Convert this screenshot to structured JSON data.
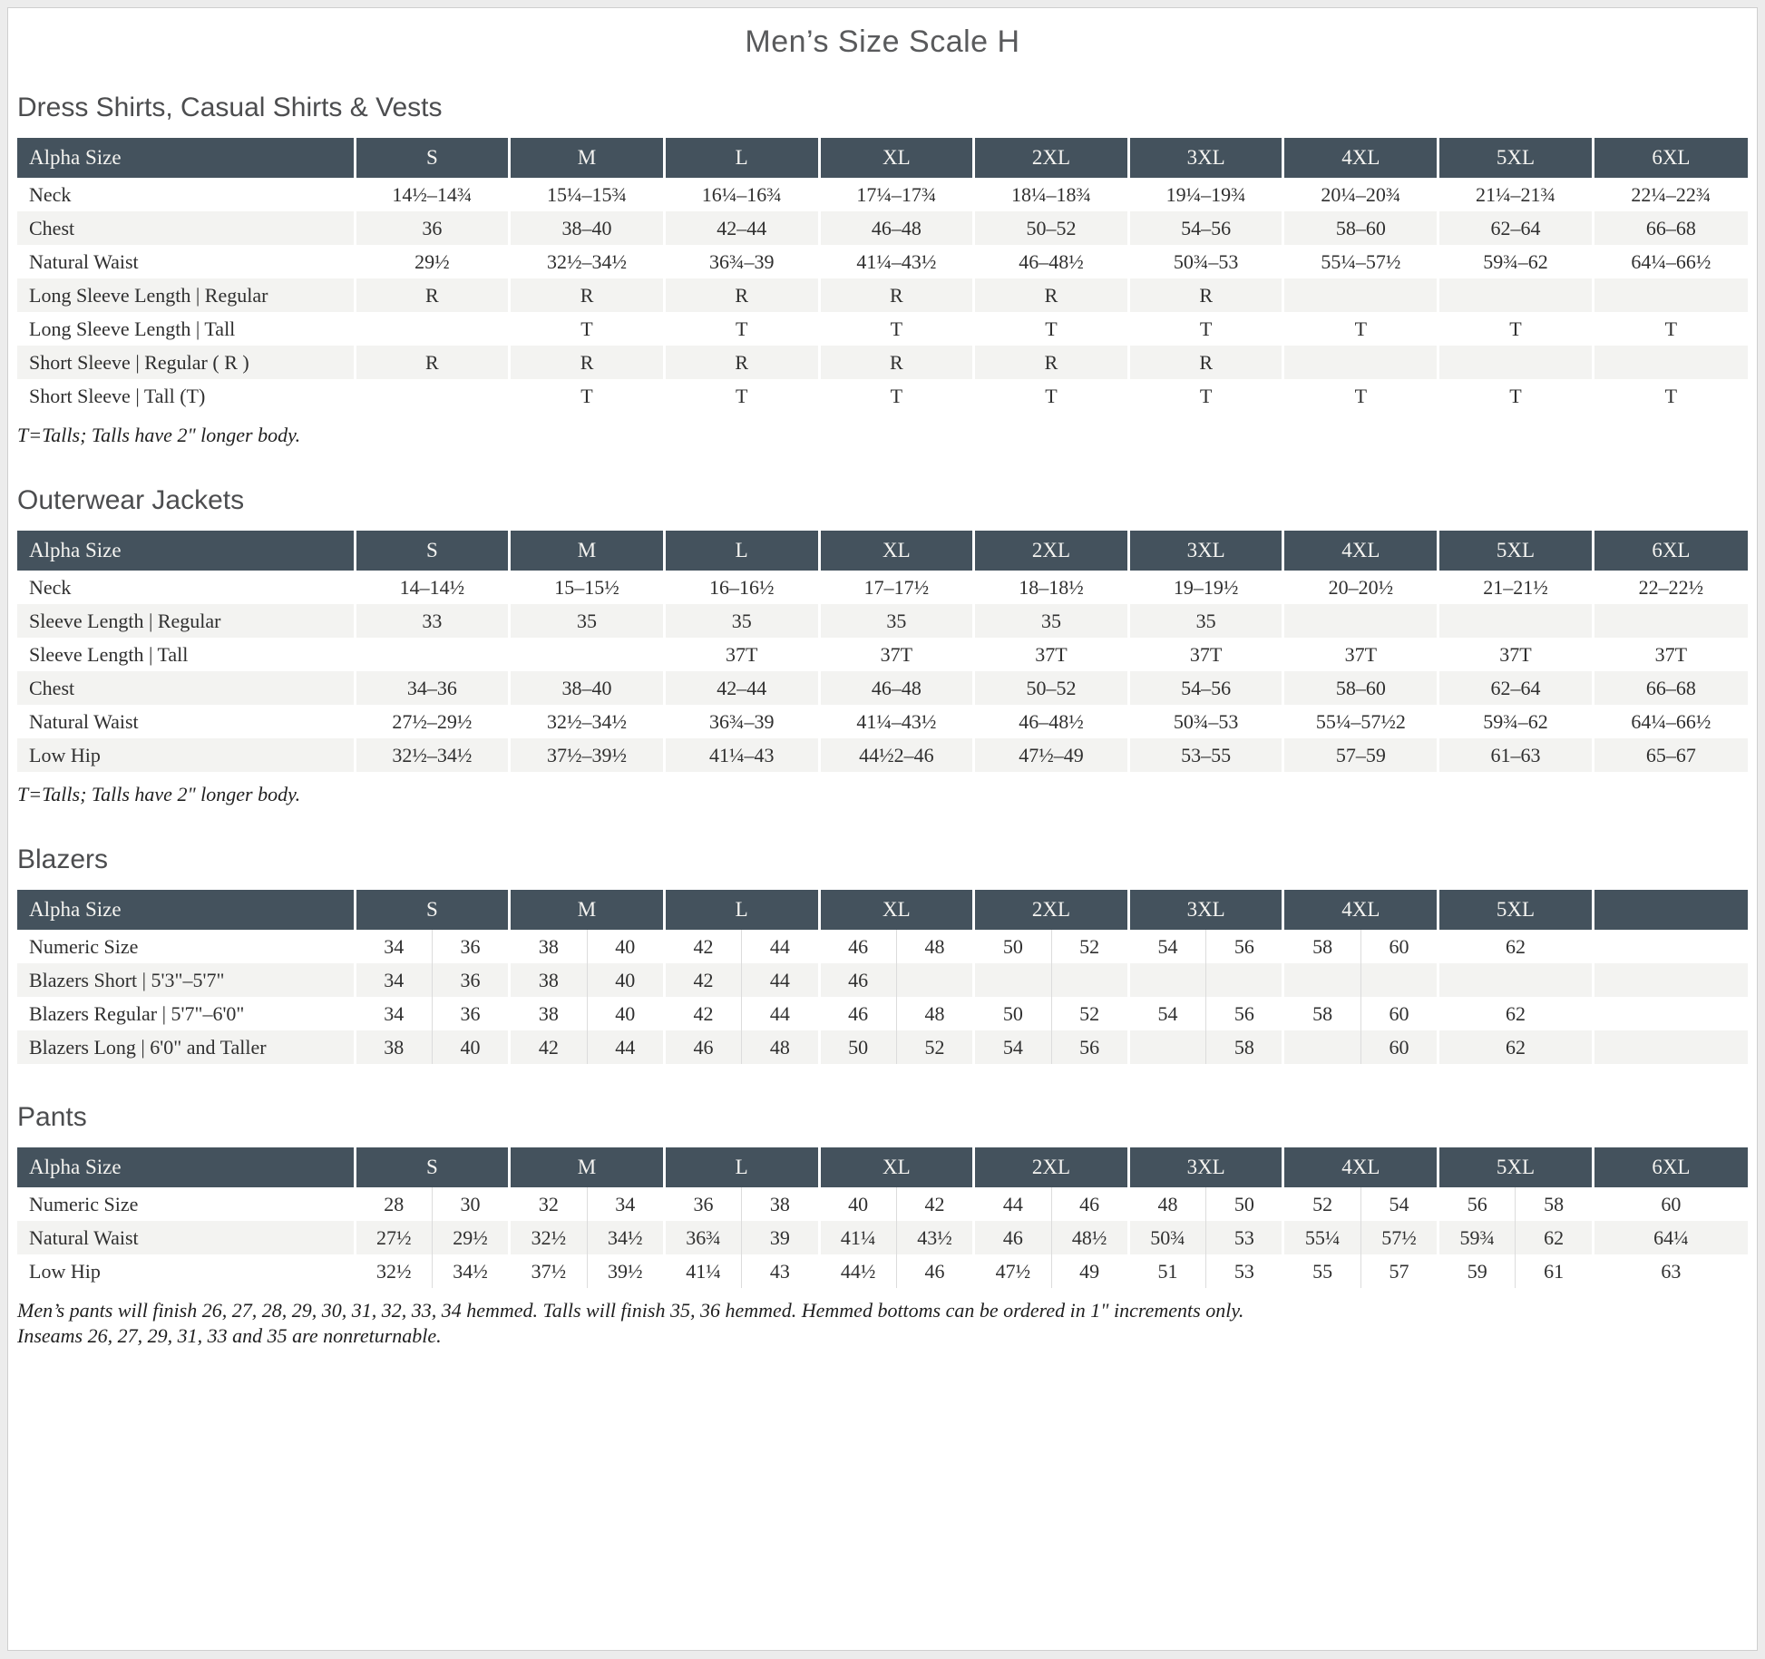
{
  "title": "Men’s Size Scale H",
  "colors": {
    "header_bg": "#44525d",
    "header_text": "#f5f4f1",
    "row_alt_bg": "#f3f3f1",
    "body_text": "#2f2f2f",
    "heading_text": "#4c4d4f",
    "title_text": "#595a5c",
    "page_border": "#cfcfcf"
  },
  "sections": [
    {
      "id": "dress-shirts",
      "heading": "Dress Shirts, Casual Shirts & Vests",
      "layout": "simple",
      "columns": [
        "Alpha Size",
        "S",
        "M",
        "L",
        "XL",
        "2XL",
        "3XL",
        "4XL",
        "5XL",
        "6XL"
      ],
      "rows": [
        {
          "label": "Neck",
          "values": [
            "14½–14¾",
            "15¼–15¾",
            "16¼–16¾",
            "17¼–17¾",
            "18¼–18¾",
            "19¼–19¾",
            "20¼–20¾",
            "21¼–21¾",
            "22¼–22¾"
          ]
        },
        {
          "label": "Chest",
          "values": [
            "36",
            "38–40",
            "42–44",
            "46–48",
            "50–52",
            "54–56",
            "58–60",
            "62–64",
            "66–68"
          ]
        },
        {
          "label": "Natural Waist",
          "values": [
            "29½",
            "32½–34½",
            "36¾–39",
            "41¼–43½",
            "46–48½",
            "50¾–53",
            "55¼–57½",
            "59¾–62",
            "64¼–66½"
          ]
        },
        {
          "label": "Long Sleeve Length | Regular",
          "values": [
            "R",
            "R",
            "R",
            "R",
            "R",
            "R",
            "",
            "",
            ""
          ]
        },
        {
          "label": "Long Sleeve Length | Tall",
          "values": [
            "",
            "T",
            "T",
            "T",
            "T",
            "T",
            "T",
            "T",
            "T"
          ]
        },
        {
          "label": "Short Sleeve | Regular ( R )",
          "values": [
            "R",
            "R",
            "R",
            "R",
            "R",
            "R",
            "",
            "",
            ""
          ]
        },
        {
          "label": "Short Sleeve | Tall (T)",
          "values": [
            "",
            "T",
            "T",
            "T",
            "T",
            "T",
            "T",
            "T",
            "T"
          ]
        }
      ],
      "footnote": "T=Talls; Talls have 2\" longer body."
    },
    {
      "id": "outerwear-jackets",
      "heading": "Outerwear Jackets",
      "layout": "simple",
      "columns": [
        "Alpha Size",
        "S",
        "M",
        "L",
        "XL",
        "2XL",
        "3XL",
        "4XL",
        "5XL",
        "6XL"
      ],
      "rows": [
        {
          "label": "Neck",
          "values": [
            "14–14½",
            "15–15½",
            "16–16½",
            "17–17½",
            "18–18½",
            "19–19½",
            "20–20½",
            "21–21½",
            "22–22½"
          ]
        },
        {
          "label": "Sleeve Length | Regular",
          "values": [
            "33",
            "35",
            "35",
            "35",
            "35",
            "35",
            "",
            "",
            ""
          ]
        },
        {
          "label": "Sleeve Length | Tall",
          "values": [
            "",
            "",
            "37T",
            "37T",
            "37T",
            "37T",
            "37T",
            "37T",
            "37T"
          ]
        },
        {
          "label": "Chest",
          "values": [
            "34–36",
            "38–40",
            "42–44",
            "46–48",
            "50–52",
            "54–56",
            "58–60",
            "62–64",
            "66–68"
          ]
        },
        {
          "label": "Natural Waist",
          "values": [
            "27½–29½",
            "32½–34½",
            "36¾–39",
            "41¼–43½",
            "46–48½",
            "50¾–53",
            "55¼–57½2",
            "59¾–62",
            "64¼–66½"
          ]
        },
        {
          "label": "Low Hip",
          "values": [
            "32½–34½",
            "37½–39½",
            "41¼–43",
            "44½2–46",
            "47½–49",
            "53–55",
            "57–59",
            "61–63",
            "65–67"
          ]
        }
      ],
      "footnote": "T=Talls; Talls have 2\" longer body."
    },
    {
      "id": "blazers",
      "heading": "Blazers",
      "layout": "paired",
      "columns": [
        "Alpha Size",
        "S",
        "M",
        "L",
        "XL",
        "2XL",
        "3XL",
        "4XL",
        "5XL",
        ""
      ],
      "rows": [
        {
          "label": "Numeric Size",
          "pairs": [
            [
              "34",
              "36"
            ],
            [
              "38",
              "40"
            ],
            [
              "42",
              "44"
            ],
            [
              "46",
              "48"
            ],
            [
              "50",
              "52"
            ],
            [
              "54",
              "56"
            ],
            [
              "58",
              "60"
            ],
            [
              "62"
            ],
            []
          ]
        },
        {
          "label": "Blazers Short | 5'3\"–5'7\"",
          "pairs": [
            [
              "34",
              "36"
            ],
            [
              "38",
              "40"
            ],
            [
              "42",
              "44"
            ],
            [
              "46",
              ""
            ],
            [
              "",
              ""
            ],
            [
              "",
              ""
            ],
            [
              "",
              ""
            ],
            [
              ""
            ],
            []
          ]
        },
        {
          "label": "Blazers Regular | 5'7\"–6'0\"",
          "pairs": [
            [
              "34",
              "36"
            ],
            [
              "38",
              "40"
            ],
            [
              "42",
              "44"
            ],
            [
              "46",
              "48"
            ],
            [
              "50",
              "52"
            ],
            [
              "54",
              "56"
            ],
            [
              "58",
              "60"
            ],
            [
              "62"
            ],
            []
          ]
        },
        {
          "label": "Blazers Long | 6'0\" and Taller",
          "pairs": [
            [
              "38",
              "40"
            ],
            [
              "42",
              "44"
            ],
            [
              "46",
              "48"
            ],
            [
              "50",
              "52"
            ],
            [
              "54",
              "56"
            ],
            [
              "",
              "58"
            ],
            [
              "",
              "60"
            ],
            [
              "62"
            ],
            []
          ]
        }
      ]
    },
    {
      "id": "pants",
      "heading": "Pants",
      "layout": "paired",
      "columns": [
        "Alpha Size",
        "S",
        "M",
        "L",
        "XL",
        "2XL",
        "3XL",
        "4XL",
        "5XL",
        "6XL"
      ],
      "rows": [
        {
          "label": "Numeric Size",
          "pairs": [
            [
              "28",
              "30"
            ],
            [
              "32",
              "34"
            ],
            [
              "36",
              "38"
            ],
            [
              "40",
              "42"
            ],
            [
              "44",
              "46"
            ],
            [
              "48",
              "50"
            ],
            [
              "52",
              "54"
            ],
            [
              "56",
              "58"
            ],
            [
              "60"
            ]
          ]
        },
        {
          "label": "Natural Waist",
          "pairs": [
            [
              "27½",
              "29½"
            ],
            [
              "32½",
              "34½"
            ],
            [
              "36¾",
              "39"
            ],
            [
              "41¼",
              "43½"
            ],
            [
              "46",
              "48½"
            ],
            [
              "50¾",
              "53"
            ],
            [
              "55¼",
              "57½"
            ],
            [
              "59¾",
              "62"
            ],
            [
              "64¼"
            ]
          ]
        },
        {
          "label": "Low Hip",
          "pairs": [
            [
              "32½",
              "34½"
            ],
            [
              "37½",
              "39½"
            ],
            [
              "41¼",
              "43"
            ],
            [
              "44½",
              "46"
            ],
            [
              "47½",
              "49"
            ],
            [
              "51",
              "53"
            ],
            [
              "55",
              "57"
            ],
            [
              "59",
              "61"
            ],
            [
              "63"
            ]
          ]
        }
      ],
      "notes": [
        "Men’s pants will finish 26, 27, 28, 29, 30, 31, 32, 33, 34 hemmed. Talls will finish 35, 36 hemmed. Hemmed bottoms can be ordered in 1\" increments only.",
        "Inseams 26, 27, 29, 31, 33 and 35 are nonreturnable."
      ]
    }
  ]
}
